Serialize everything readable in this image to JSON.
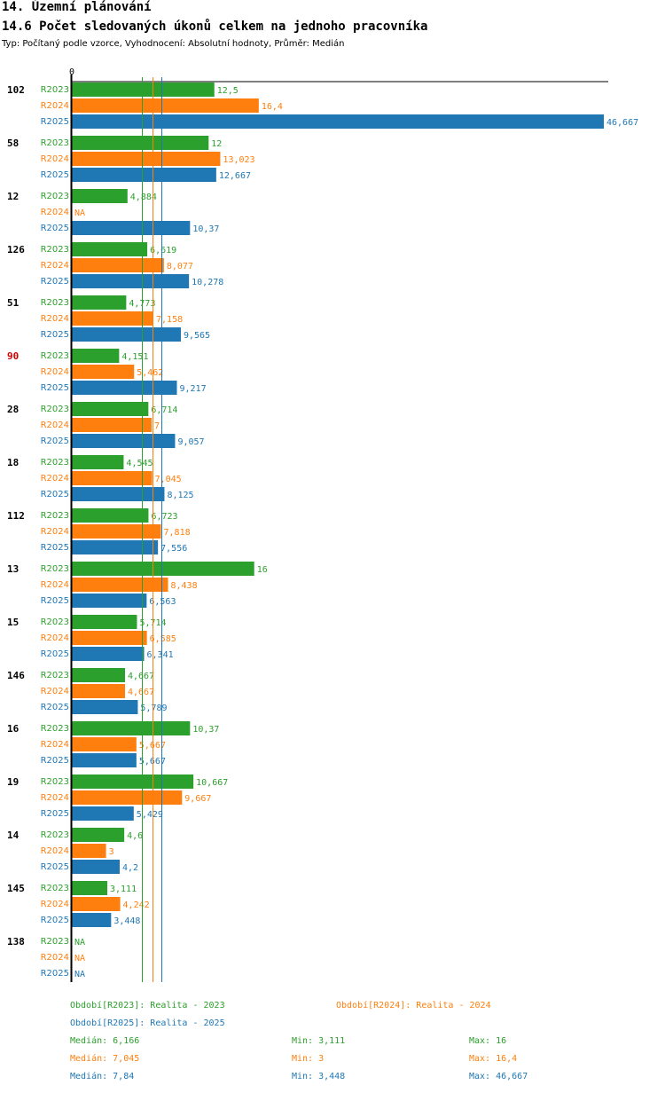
{
  "header": {
    "title": "14. Územní plánování",
    "subtitle": "14.6 Počet sledovaných úkonů celkem na jednoho pracovníka",
    "type_line": "Typ: Počítaný podle vzorce, Vyhodnocení: Absolutní hodnoty, Průměr: Medián"
  },
  "chart_data": {
    "type": "bar",
    "orientation": "horizontal",
    "xlim": [
      0,
      46.667
    ],
    "x_tick_labels": [
      "0"
    ],
    "series_names": [
      "R2023",
      "R2024",
      "R2025"
    ],
    "colors": {
      "R2023": "#2ca02c",
      "R2024": "#ff7f0e",
      "R2025": "#1f77b4",
      "highlight": "#cc0000"
    },
    "groups": [
      {
        "label": "102",
        "highlight": false,
        "values": [
          12.5,
          16.4,
          46.667
        ],
        "labels": [
          "12,5",
          "16,4",
          "46,667"
        ]
      },
      {
        "label": "58",
        "highlight": false,
        "values": [
          12,
          13.023,
          12.667
        ],
        "labels": [
          "12",
          "13,023",
          "12,667"
        ]
      },
      {
        "label": "12",
        "highlight": false,
        "values": [
          4.884,
          null,
          10.37
        ],
        "labels": [
          "4,884",
          "NA",
          "10,37"
        ]
      },
      {
        "label": "126",
        "highlight": false,
        "values": [
          6.619,
          8.077,
          10.278
        ],
        "labels": [
          "6,619",
          "8,077",
          "10,278"
        ]
      },
      {
        "label": "51",
        "highlight": false,
        "values": [
          4.773,
          7.158,
          9.565
        ],
        "labels": [
          "4,773",
          "7,158",
          "9,565"
        ]
      },
      {
        "label": "90",
        "highlight": true,
        "values": [
          4.151,
          5.462,
          9.217
        ],
        "labels": [
          "4,151",
          "5,462",
          "9,217"
        ]
      },
      {
        "label": "28",
        "highlight": false,
        "values": [
          6.714,
          7,
          9.057
        ],
        "labels": [
          "6,714",
          "7",
          "9,057"
        ]
      },
      {
        "label": "18",
        "highlight": false,
        "values": [
          4.545,
          7.045,
          8.125
        ],
        "labels": [
          "4,545",
          "7,045",
          "8,125"
        ]
      },
      {
        "label": "112",
        "highlight": false,
        "values": [
          6.723,
          7.818,
          7.556
        ],
        "labels": [
          "6,723",
          "7,818",
          "7,556"
        ]
      },
      {
        "label": "13",
        "highlight": false,
        "values": [
          16,
          8.438,
          6.563
        ],
        "labels": [
          "16",
          "8,438",
          "6,563"
        ]
      },
      {
        "label": "15",
        "highlight": false,
        "values": [
          5.714,
          6.585,
          6.341
        ],
        "labels": [
          "5,714",
          "6,585",
          "6,341"
        ]
      },
      {
        "label": "146",
        "highlight": false,
        "values": [
          4.667,
          4.667,
          5.789
        ],
        "labels": [
          "4,667",
          "4,667",
          "5,789"
        ]
      },
      {
        "label": "16",
        "highlight": false,
        "values": [
          10.37,
          5.667,
          5.667
        ],
        "labels": [
          "10,37",
          "5,667",
          "5,667"
        ]
      },
      {
        "label": "19",
        "highlight": false,
        "values": [
          10.667,
          9.667,
          5.429
        ],
        "labels": [
          "10,667",
          "9,667",
          "5,429"
        ]
      },
      {
        "label": "14",
        "highlight": false,
        "values": [
          4.6,
          3,
          4.2
        ],
        "labels": [
          "4,6",
          "3",
          "4,2"
        ]
      },
      {
        "label": "145",
        "highlight": false,
        "values": [
          3.111,
          4.242,
          3.448
        ],
        "labels": [
          "3,111",
          "4,242",
          "3,448"
        ]
      },
      {
        "label": "138",
        "highlight": false,
        "values": [
          null,
          null,
          null
        ],
        "labels": [
          "NA",
          "NA",
          "NA"
        ]
      }
    ],
    "median_lines": [
      6.166,
      7.045,
      7.84
    ]
  },
  "legend": {
    "series": [
      {
        "key": "R2023",
        "text": "Období[R2023]: Realita - 2023"
      },
      {
        "key": "R2024",
        "text": "Období[R2024]: Realita - 2024"
      },
      {
        "key": "R2025",
        "text": "Období[R2025]: Realita - 2025"
      }
    ],
    "stats": [
      {
        "key": "R2023",
        "median": "Medián: 6,166",
        "min": "Min: 3,111",
        "max": "Max: 16"
      },
      {
        "key": "R2024",
        "median": "Medián: 7,045",
        "min": "Min: 3",
        "max": "Max: 16,4"
      },
      {
        "key": "R2025",
        "median": "Medián: 7,84",
        "min": "Min: 3,448",
        "max": "Max: 46,667"
      }
    ]
  }
}
